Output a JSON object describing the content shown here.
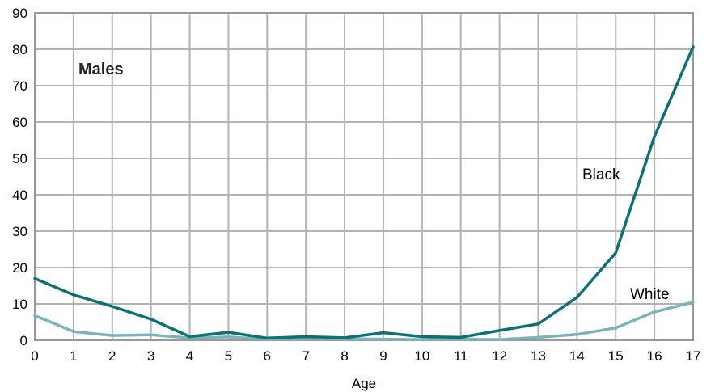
{
  "chart_data": {
    "type": "line",
    "title": "",
    "xlabel": "Age",
    "ylabel": "",
    "x": [
      0,
      1,
      2,
      3,
      4,
      5,
      6,
      7,
      8,
      9,
      10,
      11,
      12,
      13,
      14,
      15,
      16,
      17
    ],
    "xlim": [
      0,
      17
    ],
    "ylim": [
      0,
      90
    ],
    "yticks": [
      0,
      10,
      20,
      30,
      40,
      50,
      60,
      70,
      80,
      90
    ],
    "xtick_labels": [
      "0",
      "1",
      "2",
      "3",
      "4",
      "5",
      "6",
      "7",
      "8",
      "9",
      "10",
      "11",
      "12",
      "13",
      "14",
      "15",
      "16",
      "17"
    ],
    "ytick_labels": [
      "0",
      "10",
      "20",
      "30",
      "40",
      "50",
      "60",
      "70",
      "80",
      "90"
    ],
    "grid": true,
    "annotations": [
      "Males"
    ],
    "series": [
      {
        "name": "Black",
        "color": "#0e6f74",
        "values": [
          17.0,
          12.5,
          9.3,
          5.8,
          1.0,
          2.2,
          0.6,
          1.0,
          0.7,
          2.1,
          1.0,
          0.8,
          2.7,
          4.5,
          11.8,
          24.0,
          56.0,
          80.7
        ]
      },
      {
        "name": "White",
        "color": "#7ab4b8",
        "values": [
          6.8,
          2.4,
          1.3,
          1.5,
          0.6,
          0.9,
          0.3,
          0.4,
          0.4,
          0.3,
          0.2,
          0.3,
          0.2,
          0.8,
          1.6,
          3.4,
          7.8,
          10.5
        ]
      }
    ]
  }
}
